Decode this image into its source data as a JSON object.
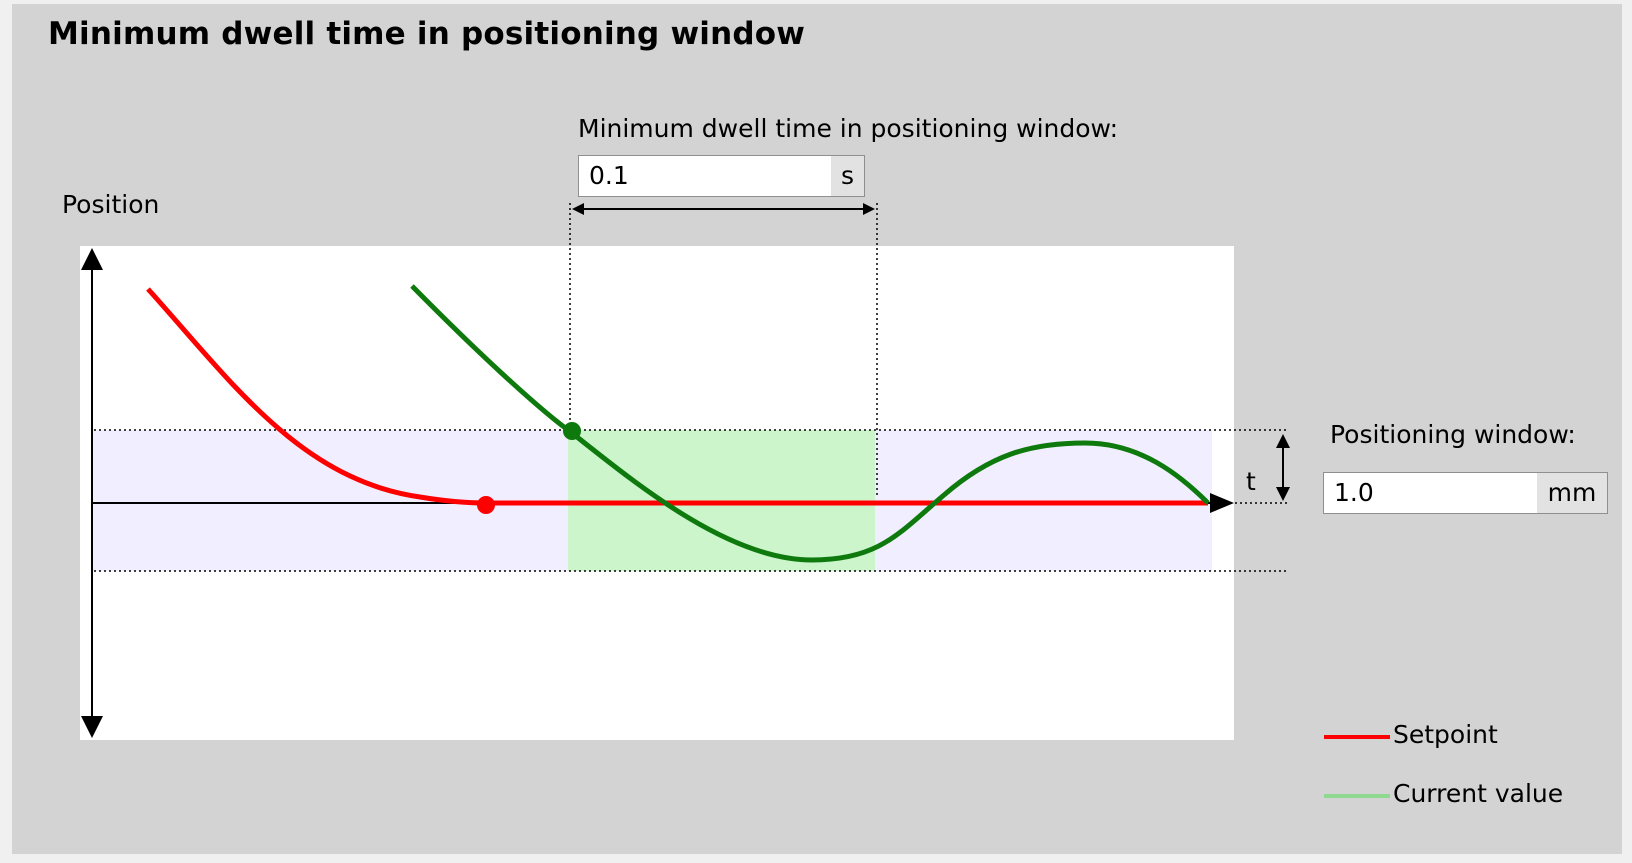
{
  "panel": {
    "title": "Minimum dwell time in positioning window"
  },
  "dwell_time": {
    "label": "Minimum dwell time in positioning window:",
    "value": "0.1",
    "unit": "s"
  },
  "positioning_window": {
    "label": "Positioning window:",
    "value": "1.0",
    "unit": "mm"
  },
  "diagram": {
    "y_axis_label": "Position",
    "tolerance_label": "t"
  },
  "legend": {
    "setpoint": "Setpoint",
    "current_value": "Current value"
  },
  "colors": {
    "setpoint": "#ff0000",
    "current_value_curve": "#0e7a0e",
    "current_value_legend": "#8fd88f",
    "dwell_fill": "#ccf5cc",
    "window_fill": "#f1efff"
  }
}
